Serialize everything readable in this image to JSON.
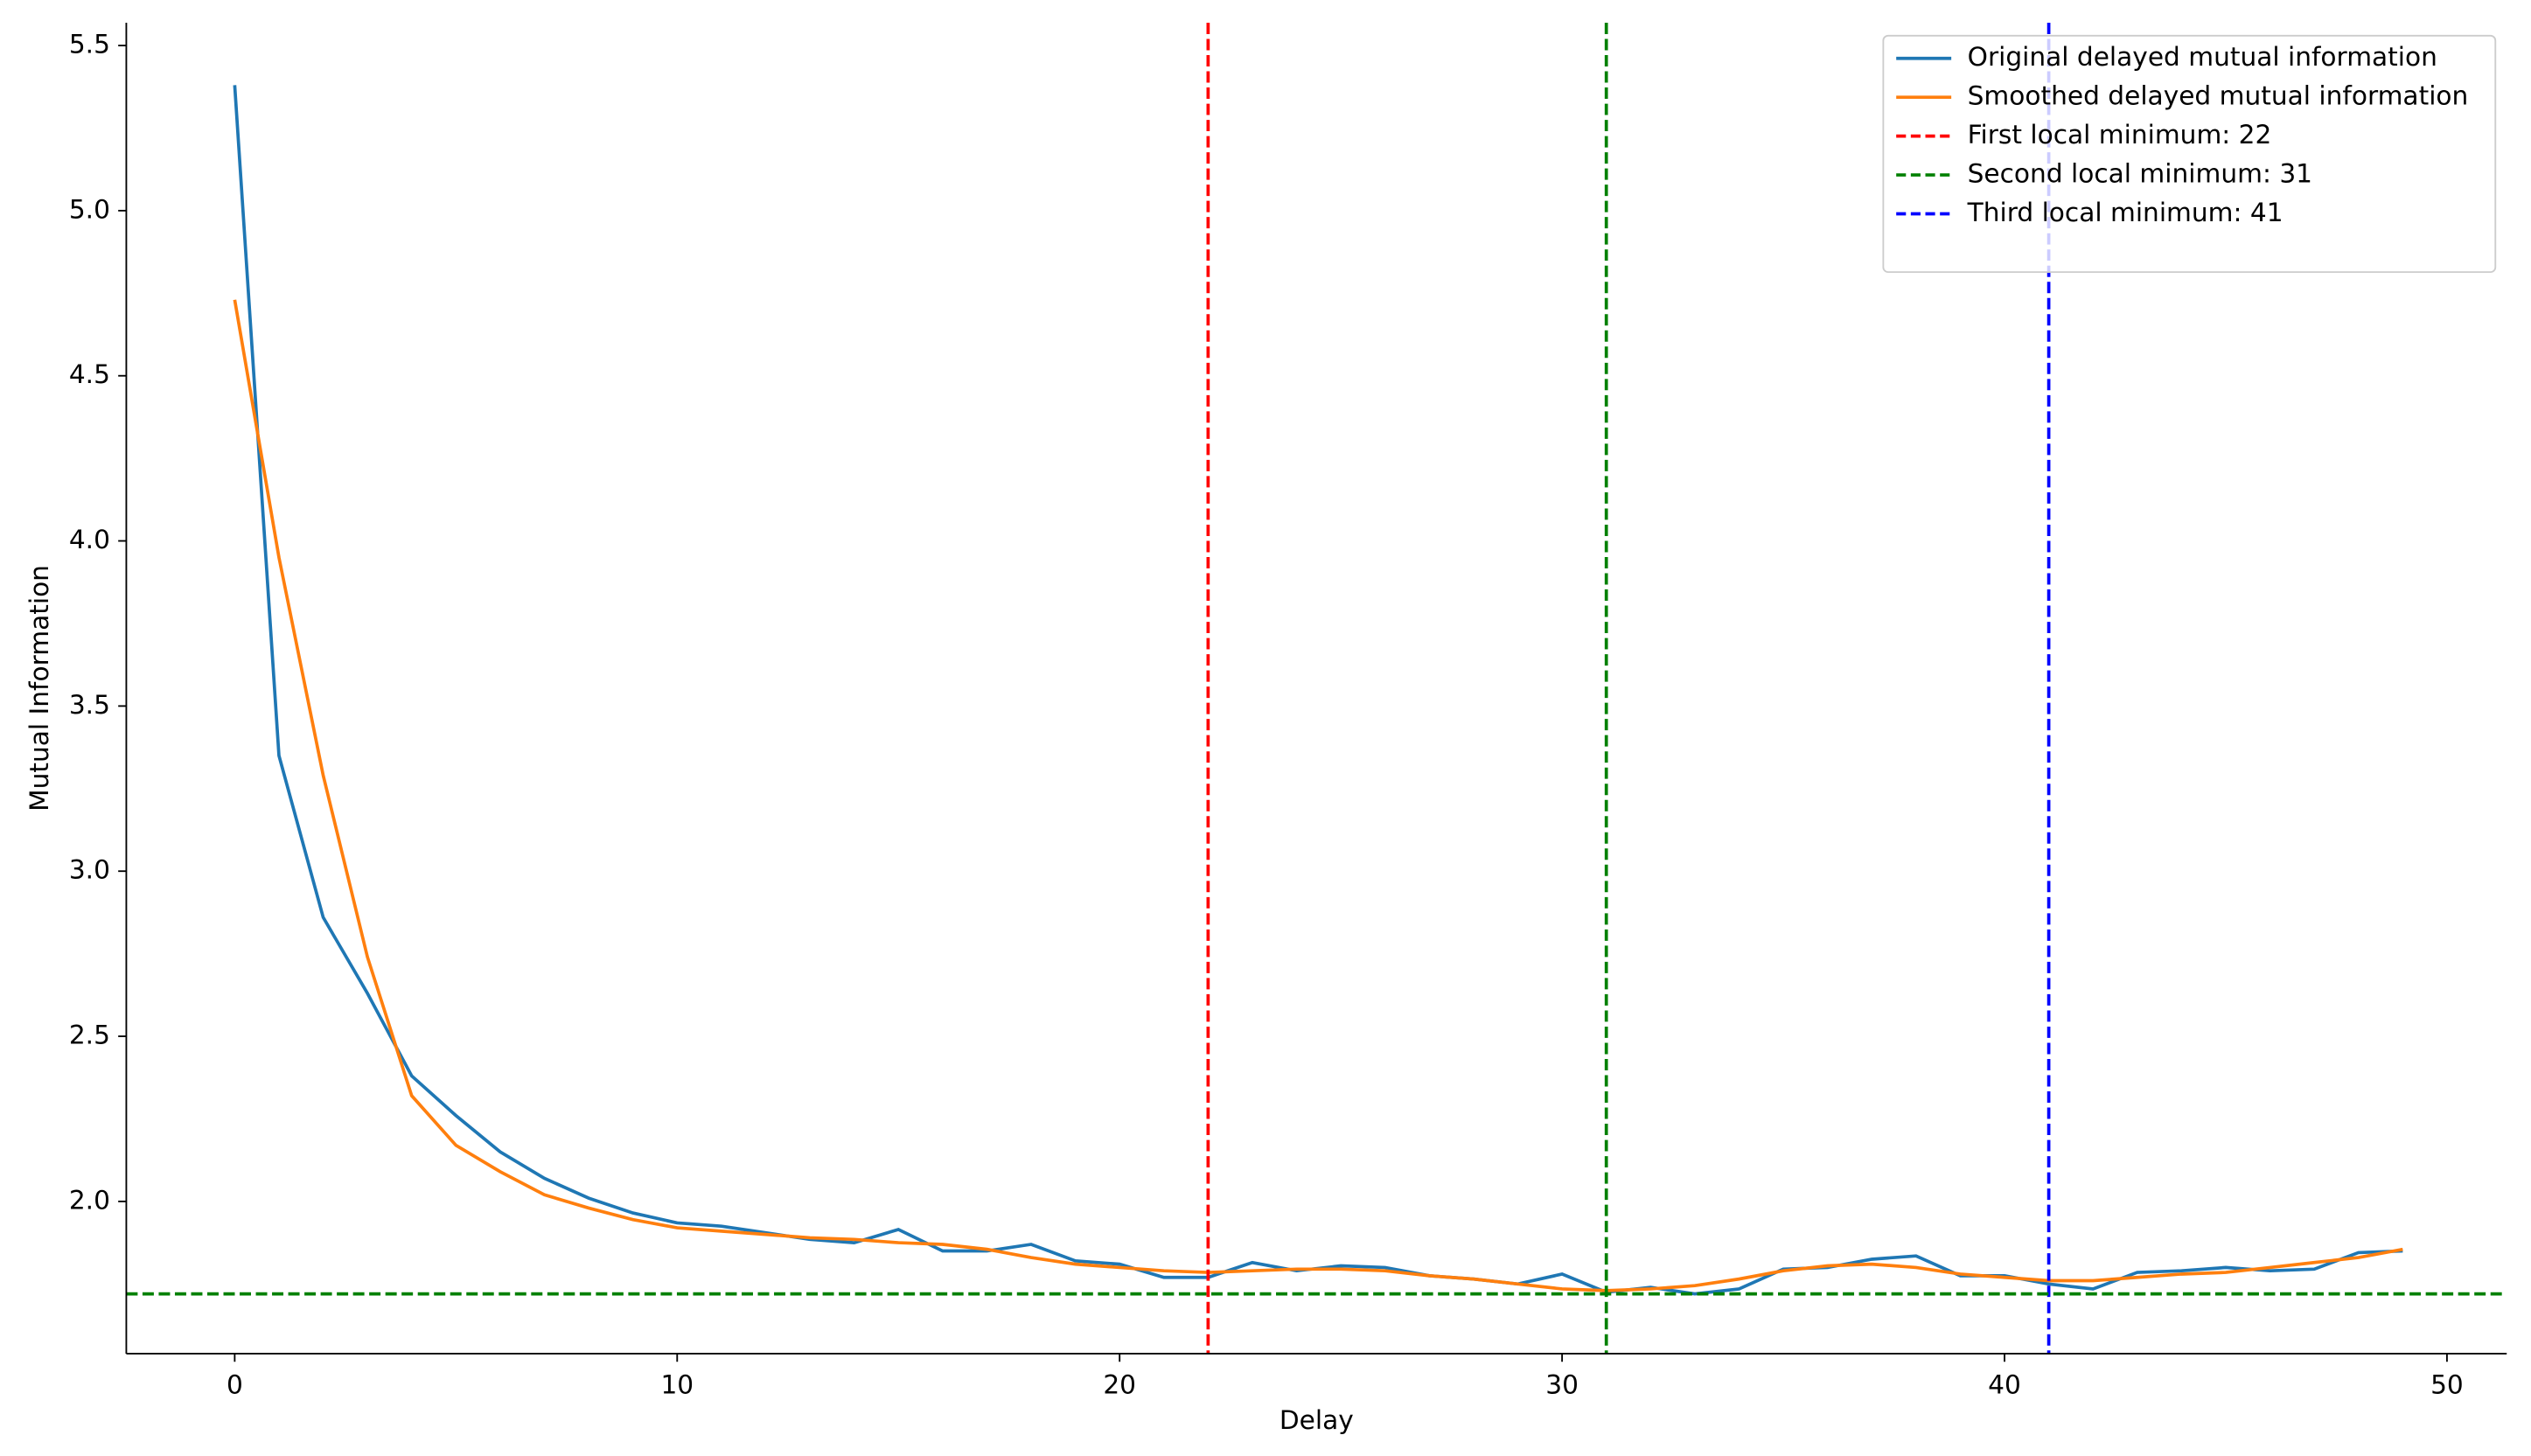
{
  "chart_data": {
    "type": "line",
    "x_label": "Delay",
    "y_label": "Mutual Information",
    "x": [
      0,
      1,
      2,
      3,
      4,
      5,
      6,
      7,
      8,
      9,
      10,
      11,
      12,
      13,
      14,
      15,
      16,
      17,
      18,
      19,
      20,
      21,
      22,
      23,
      24,
      25,
      26,
      27,
      28,
      29,
      30,
      31,
      32,
      33,
      34,
      35,
      36,
      37,
      38,
      39,
      40,
      41,
      42,
      43,
      44,
      45,
      46,
      47,
      48,
      49
    ],
    "series": [
      {
        "name": "Original delayed mutual information",
        "color": "#1f77b4",
        "values": [
          5.38,
          3.35,
          2.86,
          2.63,
          2.38,
          2.26,
          2.15,
          2.07,
          2.01,
          1.965,
          1.935,
          1.925,
          1.905,
          1.885,
          1.875,
          1.915,
          1.85,
          1.85,
          1.87,
          1.82,
          1.81,
          1.77,
          1.77,
          1.815,
          1.79,
          1.805,
          1.8,
          1.775,
          1.765,
          1.75,
          1.78,
          1.725,
          1.74,
          1.72,
          1.735,
          1.795,
          1.8,
          1.825,
          1.835,
          1.775,
          1.775,
          1.75,
          1.735,
          1.785,
          1.79,
          1.8,
          1.79,
          1.795,
          1.845,
          1.85
        ]
      },
      {
        "name": "Smoothed delayed mutual information",
        "color": "#ff7f0e",
        "values": [
          4.73,
          3.95,
          3.29,
          2.74,
          2.32,
          2.17,
          2.09,
          2.02,
          1.98,
          1.945,
          1.92,
          1.91,
          1.9,
          1.89,
          1.885,
          1.875,
          1.87,
          1.855,
          1.83,
          1.81,
          1.8,
          1.79,
          1.785,
          1.79,
          1.795,
          1.795,
          1.79,
          1.775,
          1.765,
          1.75,
          1.735,
          1.73,
          1.735,
          1.745,
          1.765,
          1.79,
          1.805,
          1.81,
          1.8,
          1.78,
          1.77,
          1.76,
          1.76,
          1.77,
          1.78,
          1.785,
          1.8,
          1.815,
          1.83,
          1.855
        ]
      }
    ],
    "vlines": [
      {
        "name": "First local minimum: 22",
        "x": 22,
        "color": "#ff0000"
      },
      {
        "name": "Second local minimum: 31",
        "x": 31,
        "color": "#008000"
      },
      {
        "name": "Third local minimum: 41",
        "x": 41,
        "color": "#0000ff"
      }
    ],
    "hline": {
      "y": 1.72,
      "color": "#008000"
    },
    "xlim": [
      -2.45,
      51.35
    ],
    "ylim": [
      1.539,
      5.569
    ],
    "xticks": [
      0,
      10,
      20,
      30,
      40,
      50
    ],
    "yticks": [
      {
        "value": 2,
        "label": "2.0"
      },
      2.5,
      {
        "value": 3,
        "label": "3.0"
      },
      3.5,
      {
        "value": 4,
        "label": "4.0"
      },
      4.5,
      {
        "value": 5,
        "label": "5.0"
      },
      5.5
    ],
    "legend_position": "upper right"
  }
}
